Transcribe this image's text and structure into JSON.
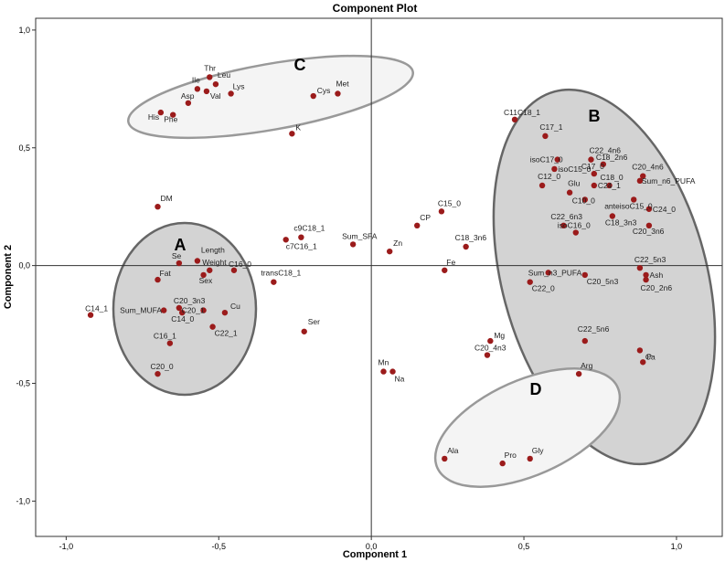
{
  "chart_data": {
    "type": "scatter",
    "title": "Component Plot",
    "xlabel": "Component 1",
    "ylabel": "Component 2",
    "xlim": [
      -1.1,
      1.15
    ],
    "ylim": [
      -1.15,
      1.05
    ],
    "xticks": [
      {
        "v": -1.0,
        "label": "-1,0"
      },
      {
        "v": -0.5,
        "label": "-0,5"
      },
      {
        "v": 0.0,
        "label": "0,0"
      },
      {
        "v": 0.5,
        "label": "0,5"
      },
      {
        "v": 1.0,
        "label": "1,0"
      }
    ],
    "yticks": [
      {
        "v": 1.0,
        "label": "1,0"
      },
      {
        "v": 0.5,
        "label": "0,5"
      },
      {
        "v": 0.0,
        "label": "0,0"
      },
      {
        "v": -0.5,
        "label": "-0,5"
      },
      {
        "v": -1.0,
        "label": "-1,0"
      }
    ],
    "point_color": "#9b1b1b",
    "clusters": [
      {
        "label": "A",
        "fill": "#d3d3d3",
        "stroke": "#666666"
      },
      {
        "label": "B",
        "fill": "#d3d3d3",
        "stroke": "#666666"
      },
      {
        "label": "C",
        "fill": "#f4f4f4",
        "stroke": "#999999"
      },
      {
        "label": "D",
        "fill": "#f4f4f4",
        "stroke": "#999999"
      }
    ],
    "points": [
      {
        "name": "Thr",
        "x": -0.53,
        "y": 0.8
      },
      {
        "name": "Leu",
        "x": -0.51,
        "y": 0.77
      },
      {
        "name": "Ile",
        "x": -0.57,
        "y": 0.75
      },
      {
        "name": "Val",
        "x": -0.54,
        "y": 0.74
      },
      {
        "name": "Lys",
        "x": -0.46,
        "y": 0.73
      },
      {
        "name": "Asp",
        "x": -0.6,
        "y": 0.69
      },
      {
        "name": "His",
        "x": -0.69,
        "y": 0.65
      },
      {
        "name": "Phe",
        "x": -0.65,
        "y": 0.64
      },
      {
        "name": "Cys",
        "x": -0.19,
        "y": 0.72
      },
      {
        "name": "Met",
        "x": -0.11,
        "y": 0.73
      },
      {
        "name": "K",
        "x": -0.26,
        "y": 0.56
      },
      {
        "name": "DM",
        "x": -0.7,
        "y": 0.25
      },
      {
        "name": "Length",
        "x": -0.57,
        "y": 0.02
      },
      {
        "name": "Se",
        "x": -0.63,
        "y": 0.01
      },
      {
        "name": "Weight",
        "x": -0.53,
        "y": -0.02
      },
      {
        "name": "Fat",
        "x": -0.7,
        "y": -0.06
      },
      {
        "name": "Sex",
        "x": -0.55,
        "y": -0.04
      },
      {
        "name": "C16_0",
        "x": -0.45,
        "y": -0.02
      },
      {
        "name": "C14_1",
        "x": -0.92,
        "y": -0.21
      },
      {
        "name": "Sum_MUFA",
        "x": -0.68,
        "y": -0.19
      },
      {
        "name": "C20_3n3",
        "x": -0.63,
        "y": -0.18
      },
      {
        "name": "C14_0",
        "x": -0.62,
        "y": -0.2
      },
      {
        "name": "C20_1",
        "x": -0.55,
        "y": -0.19
      },
      {
        "name": "Cu",
        "x": -0.48,
        "y": -0.2
      },
      {
        "name": "C22_1",
        "x": -0.52,
        "y": -0.26
      },
      {
        "name": "C16_1",
        "x": -0.66,
        "y": -0.33
      },
      {
        "name": "C20_0",
        "x": -0.7,
        "y": -0.46
      },
      {
        "name": "c9C18_1",
        "x": -0.23,
        "y": 0.12
      },
      {
        "name": "c7C16_1",
        "x": -0.28,
        "y": 0.11
      },
      {
        "name": "Sum_SFA",
        "x": -0.06,
        "y": 0.09
      },
      {
        "name": "transC18_1",
        "x": -0.32,
        "y": -0.07
      },
      {
        "name": "Ser",
        "x": -0.22,
        "y": -0.28
      },
      {
        "name": "Zn",
        "x": 0.06,
        "y": 0.06
      },
      {
        "name": "CP",
        "x": 0.15,
        "y": 0.17
      },
      {
        "name": "C15_0",
        "x": 0.23,
        "y": 0.23
      },
      {
        "name": "C18_3n6",
        "x": 0.31,
        "y": 0.08
      },
      {
        "name": "Fe",
        "x": 0.24,
        "y": -0.02
      },
      {
        "name": "Mn",
        "x": 0.04,
        "y": -0.45
      },
      {
        "name": "Na",
        "x": 0.07,
        "y": -0.45
      },
      {
        "name": "Mg",
        "x": 0.39,
        "y": -0.32
      },
      {
        "name": "C20_4n3",
        "x": 0.38,
        "y": -0.38
      },
      {
        "name": "C11C18_1",
        "x": 0.47,
        "y": 0.62
      },
      {
        "name": "C17_1",
        "x": 0.57,
        "y": 0.55
      },
      {
        "name": "C22_4n6",
        "x": 0.72,
        "y": 0.45
      },
      {
        "name": "isoC17_0",
        "x": 0.61,
        "y": 0.45
      },
      {
        "name": "isoC15_0",
        "x": 0.6,
        "y": 0.41
      },
      {
        "name": "C18_2n6",
        "x": 0.76,
        "y": 0.43
      },
      {
        "name": "C20_4n6",
        "x": 0.89,
        "y": 0.38
      },
      {
        "name": "C17_0",
        "x": 0.73,
        "y": 0.39
      },
      {
        "name": "Sum_n6_PUFA",
        "x": 0.88,
        "y": 0.36
      },
      {
        "name": "C12_0",
        "x": 0.56,
        "y": 0.34
      },
      {
        "name": "Glu",
        "x": 0.65,
        "y": 0.31
      },
      {
        "name": "C24_1",
        "x": 0.73,
        "y": 0.34
      },
      {
        "name": "C18_0",
        "x": 0.78,
        "y": 0.34
      },
      {
        "name": "C10_0",
        "x": 0.7,
        "y": 0.28
      },
      {
        "name": "anteisoC15_0",
        "x": 0.86,
        "y": 0.28
      },
      {
        "name": "C24_0",
        "x": 0.91,
        "y": 0.24
      },
      {
        "name": "C22_6n3",
        "x": 0.63,
        "y": 0.17
      },
      {
        "name": "C18_3n3",
        "x": 0.79,
        "y": 0.21
      },
      {
        "name": "isoC16_0",
        "x": 0.67,
        "y": 0.14
      },
      {
        "name": "C20_3n6",
        "x": 0.91,
        "y": 0.17
      },
      {
        "name": "Sum_n3_PUFA",
        "x": 0.58,
        "y": -0.03
      },
      {
        "name": "C22_5n3",
        "x": 0.88,
        "y": -0.01
      },
      {
        "name": "Ash",
        "x": 0.9,
        "y": -0.04
      },
      {
        "name": "C22_0",
        "x": 0.52,
        "y": -0.07
      },
      {
        "name": "C20_5n3",
        "x": 0.7,
        "y": -0.04
      },
      {
        "name": "C20_2n6",
        "x": 0.9,
        "y": -0.06
      },
      {
        "name": "C22_5n6",
        "x": 0.7,
        "y": -0.32
      },
      {
        "name": "Ca",
        "x": 0.88,
        "y": -0.36
      },
      {
        "name": "P",
        "x": 0.89,
        "y": -0.41
      },
      {
        "name": "Arg",
        "x": 0.68,
        "y": -0.46
      },
      {
        "name": "Ala",
        "x": 0.24,
        "y": -0.82
      },
      {
        "name": "Pro",
        "x": 0.43,
        "y": -0.84
      },
      {
        "name": "Gly",
        "x": 0.52,
        "y": -0.82
      }
    ]
  }
}
